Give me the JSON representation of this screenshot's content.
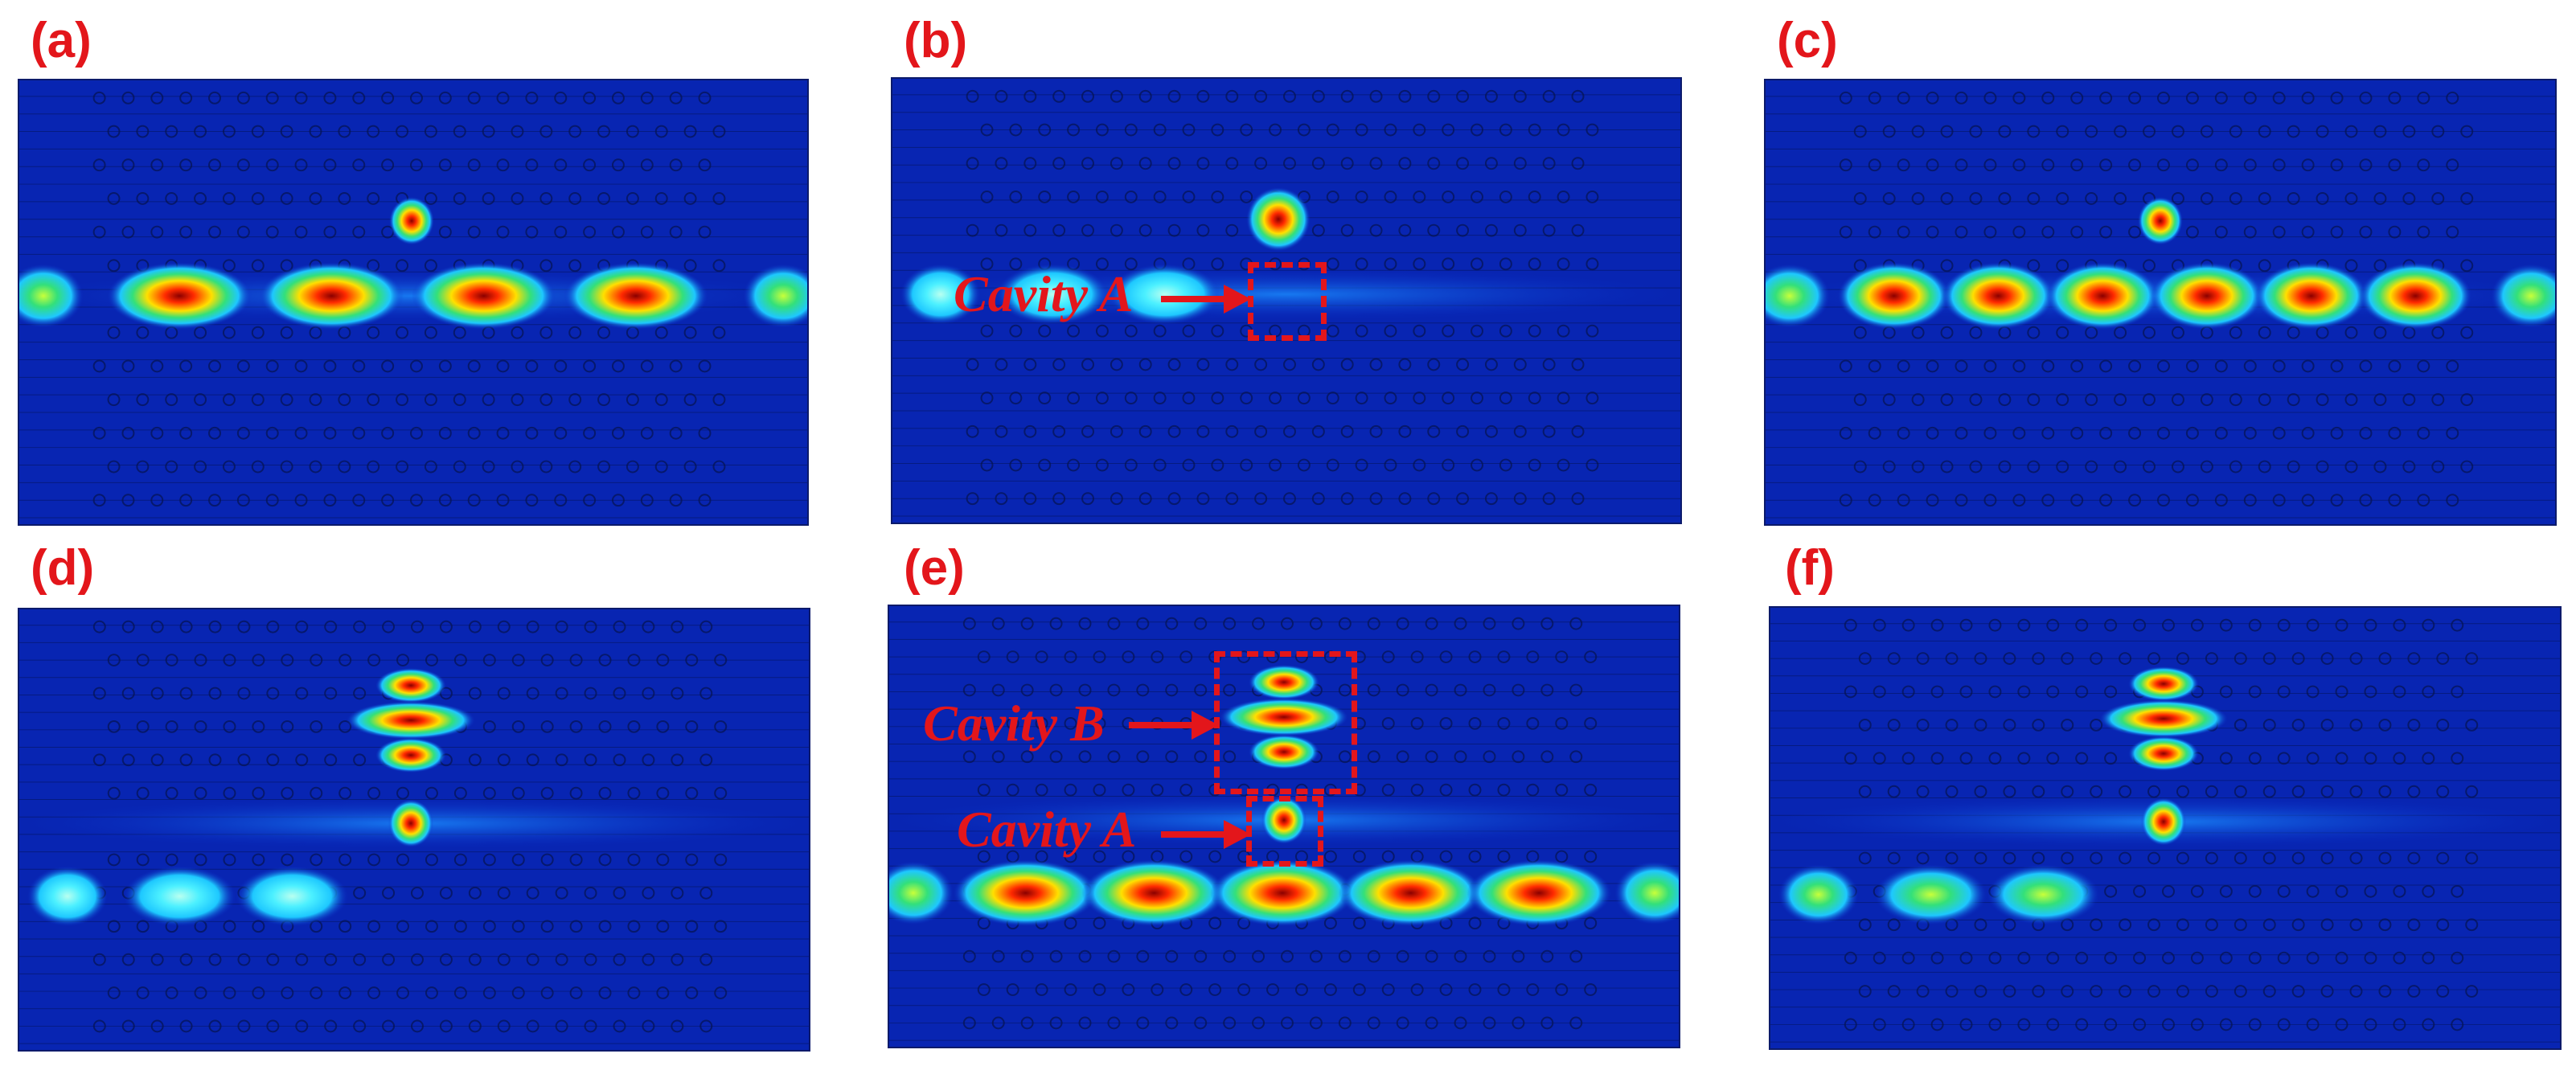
{
  "panels": [
    {
      "label": "(a)",
      "mode": "full",
      "spots": 4
    },
    {
      "label": "(b)",
      "mode": "partialA",
      "spots": 3
    },
    {
      "label": "(c)",
      "mode": "full",
      "spots": 6
    },
    {
      "label": "(d)",
      "mode": "partialAB",
      "spots": 3
    },
    {
      "label": "(e)",
      "mode": "fullAB",
      "spots": 5
    },
    {
      "label": "(f)",
      "mode": "partialAB",
      "spots": 3
    }
  ],
  "annotations": {
    "cavity_a": "Cavity A",
    "cavity_b": "Cavity B"
  },
  "colors": {
    "label_red": "#e3161b",
    "field_background": "#0a2cc8",
    "field_edge": "#041070",
    "hot": "#ff2a00",
    "warm": "#ffe000",
    "mid": "#33e07a",
    "cool": "#1ec8ff"
  },
  "colormap": "jet"
}
